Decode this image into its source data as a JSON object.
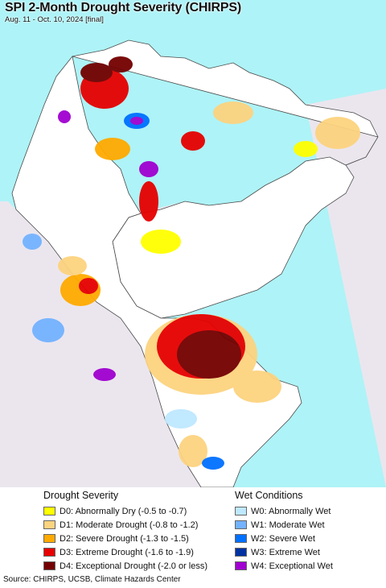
{
  "title": "SPI 2-Month Drought Severity (CHIRPS)",
  "subtitle": "Aug. 11 - Oct. 10, 2024 [final]",
  "legend": {
    "drought_heading": "Drought Severity",
    "wet_heading": "Wet Conditions",
    "drought": [
      {
        "label": "D0: Abnormally Dry (-0.5 to -0.7)",
        "color": "#ffff00"
      },
      {
        "label": "D1: Moderate Drought (-0.8 to -1.2)",
        "color": "#fcd37f"
      },
      {
        "label": "D2: Severe Drought (-1.3 to -1.5)",
        "color": "#ffaa00"
      },
      {
        "label": "D3: Extreme Drought (-1.6 to -1.9)",
        "color": "#e60000"
      },
      {
        "label": "D4: Exceptional Drought (-2.0 or less)",
        "color": "#730000"
      }
    ],
    "wet": [
      {
        "label": "W0: Abnormally Wet",
        "color": "#bee8ff"
      },
      {
        "label": "W1: Moderate Wet",
        "color": "#73b2ff"
      },
      {
        "label": "W2: Severe Wet",
        "color": "#0070ff"
      },
      {
        "label": "W3: Extreme Wet",
        "color": "#0032a0"
      },
      {
        "label": "W4: Exceptional Wet",
        "color": "#a000d0"
      }
    ]
  },
  "source": "Source: CHIRPS, UCSB, Climate Hazards Center",
  "map_colors": {
    "ocean": "#aef3f7",
    "land": "#ffffff",
    "outside": "#ebe6ee",
    "border": "#4a4a4a"
  }
}
